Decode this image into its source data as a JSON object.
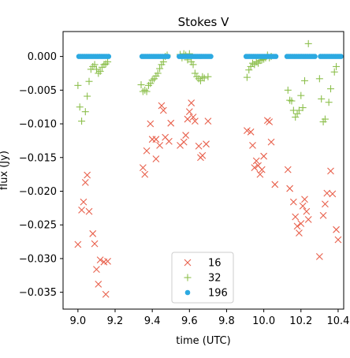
{
  "chart_data": {
    "type": "scatter",
    "title": "Stokes V",
    "xlabel": "time (UTC)",
    "ylabel": "flux (Jy)",
    "xlim": [
      8.92,
      10.43
    ],
    "ylim": [
      -0.0375,
      0.0037
    ],
    "xticks": [
      9.0,
      9.2,
      9.4,
      9.6,
      9.8,
      10.0,
      10.2,
      10.4
    ],
    "xtick_labels": [
      "9.0",
      "9.2",
      "9.4",
      "9.6",
      "9.8",
      "10.0",
      "10.2",
      "10.4"
    ],
    "yticks": [
      0.0,
      -0.005,
      -0.01,
      -0.015,
      -0.02,
      -0.025,
      -0.03,
      -0.035
    ],
    "ytick_labels": [
      "0.000",
      "−0.005",
      "−0.010",
      "−0.015",
      "−0.020",
      "−0.025",
      "−0.030",
      "−0.035"
    ],
    "legend_position": "lower-center",
    "series": [
      {
        "name": "16",
        "marker": "x",
        "color": "#e8604c",
        "points": [
          [
            9.0,
            -0.0279
          ],
          [
            9.02,
            -0.0228
          ],
          [
            9.03,
            -0.0216
          ],
          [
            9.04,
            -0.0187
          ],
          [
            9.05,
            -0.0176
          ],
          [
            9.06,
            -0.023
          ],
          [
            9.08,
            -0.0263
          ],
          [
            9.09,
            -0.0278
          ],
          [
            9.1,
            -0.0316
          ],
          [
            9.11,
            -0.0338
          ],
          [
            9.12,
            -0.0302
          ],
          [
            9.14,
            -0.0305
          ],
          [
            9.15,
            -0.0353
          ],
          [
            9.16,
            -0.0304
          ],
          [
            9.35,
            -0.0165
          ],
          [
            9.36,
            -0.0175
          ],
          [
            9.37,
            -0.014
          ],
          [
            9.39,
            -0.01
          ],
          [
            9.4,
            -0.0123
          ],
          [
            9.42,
            -0.0152
          ],
          [
            9.42,
            -0.0123
          ],
          [
            9.44,
            -0.0132
          ],
          [
            9.45,
            -0.0073
          ],
          [
            9.46,
            -0.008
          ],
          [
            9.47,
            -0.012
          ],
          [
            9.49,
            -0.0126
          ],
          [
            9.5,
            -0.0099
          ],
          [
            9.55,
            -0.0132
          ],
          [
            9.57,
            -0.0127
          ],
          [
            9.58,
            -0.0117
          ],
          [
            9.59,
            -0.0093
          ],
          [
            9.6,
            -0.0082
          ],
          [
            9.61,
            -0.0069
          ],
          [
            9.62,
            -0.009
          ],
          [
            9.63,
            -0.0096
          ],
          [
            9.65,
            -0.0133
          ],
          [
            9.66,
            -0.015
          ],
          [
            9.67,
            -0.0147
          ],
          [
            9.69,
            -0.013
          ],
          [
            9.7,
            -0.0096
          ],
          [
            9.91,
            -0.011
          ],
          [
            9.93,
            -0.0112
          ],
          [
            9.94,
            -0.0132
          ],
          [
            9.95,
            -0.0165
          ],
          [
            9.96,
            -0.0155
          ],
          [
            9.97,
            -0.0162
          ],
          [
            9.98,
            -0.0175
          ],
          [
            9.99,
            -0.0168
          ],
          [
            10.0,
            -0.0148
          ],
          [
            10.02,
            -0.0095
          ],
          [
            10.03,
            -0.0097
          ],
          [
            10.04,
            -0.0127
          ],
          [
            10.06,
            -0.019
          ],
          [
            10.13,
            -0.0168
          ],
          [
            10.14,
            -0.0196
          ],
          [
            10.16,
            -0.0216
          ],
          [
            10.17,
            -0.0238
          ],
          [
            10.18,
            -0.0252
          ],
          [
            10.19,
            -0.0262
          ],
          [
            10.2,
            -0.0248
          ],
          [
            10.21,
            -0.0222
          ],
          [
            10.22,
            -0.0212
          ],
          [
            10.23,
            -0.023
          ],
          [
            10.24,
            -0.0242
          ],
          [
            10.3,
            -0.0297
          ],
          [
            10.32,
            -0.0236
          ],
          [
            10.33,
            -0.0219
          ],
          [
            10.34,
            -0.0203
          ],
          [
            10.36,
            -0.017
          ],
          [
            10.37,
            -0.0204
          ],
          [
            10.39,
            -0.0257
          ],
          [
            10.4,
            -0.0272
          ]
        ]
      },
      {
        "name": "32",
        "marker": "+",
        "color": "#8cbf4c",
        "points": [
          [
            9.0,
            -0.0043
          ],
          [
            9.01,
            -0.0075
          ],
          [
            9.02,
            -0.0096
          ],
          [
            9.04,
            -0.0082
          ],
          [
            9.05,
            -0.0059
          ],
          [
            9.06,
            -0.0037
          ],
          [
            9.07,
            -0.0019
          ],
          [
            9.08,
            -0.0015
          ],
          [
            9.09,
            -0.0012
          ],
          [
            9.1,
            -0.0019
          ],
          [
            9.11,
            -0.0025
          ],
          [
            9.12,
            -0.0022
          ],
          [
            9.13,
            -0.0016
          ],
          [
            9.14,
            -0.0012
          ],
          [
            9.15,
            -0.0011
          ],
          [
            9.16,
            -0.0008
          ],
          [
            9.34,
            -0.0042
          ],
          [
            9.35,
            -0.0052
          ],
          [
            9.36,
            -0.005
          ],
          [
            9.37,
            -0.0052
          ],
          [
            9.38,
            -0.0043
          ],
          [
            9.39,
            -0.004
          ],
          [
            9.4,
            -0.0035
          ],
          [
            9.41,
            -0.0033
          ],
          [
            9.42,
            -0.0029
          ],
          [
            9.43,
            -0.0025
          ],
          [
            9.44,
            -0.0018
          ],
          [
            9.45,
            -0.0012
          ],
          [
            9.46,
            -0.0008
          ],
          [
            9.47,
            0.0
          ],
          [
            9.48,
            0.0002
          ],
          [
            9.55,
            0.0003
          ],
          [
            9.56,
            -0.0002
          ],
          [
            9.57,
            0.0004
          ],
          [
            9.58,
            0.0002
          ],
          [
            9.59,
            -0.0005
          ],
          [
            9.6,
            0.0004
          ],
          [
            9.61,
            -0.0008
          ],
          [
            9.62,
            -0.0012
          ],
          [
            9.63,
            -0.0025
          ],
          [
            9.64,
            -0.003
          ],
          [
            9.65,
            -0.0033
          ],
          [
            9.66,
            -0.0036
          ],
          [
            9.67,
            -0.003
          ],
          [
            9.68,
            -0.0032
          ],
          [
            9.7,
            -0.003
          ],
          [
            9.91,
            -0.0031
          ],
          [
            9.92,
            -0.002
          ],
          [
            9.93,
            -0.0015
          ],
          [
            9.94,
            -0.001
          ],
          [
            9.95,
            -0.0012
          ],
          [
            9.96,
            -0.0008
          ],
          [
            9.97,
            -0.001
          ],
          [
            9.98,
            -0.0006
          ],
          [
            9.99,
            -0.0005
          ],
          [
            10.0,
            -0.0004
          ],
          [
            10.01,
            -0.0002
          ],
          [
            10.02,
            0.0002
          ],
          [
            10.03,
            -0.0002
          ],
          [
            10.04,
            0.0
          ],
          [
            10.13,
            -0.005
          ],
          [
            10.14,
            -0.0065
          ],
          [
            10.15,
            -0.0066
          ],
          [
            10.16,
            -0.008
          ],
          [
            10.17,
            -0.009
          ],
          [
            10.18,
            -0.0085
          ],
          [
            10.19,
            -0.008
          ],
          [
            10.2,
            -0.0058
          ],
          [
            10.21,
            -0.0076
          ],
          [
            10.22,
            -0.0036
          ],
          [
            10.24,
            0.0019
          ],
          [
            10.3,
            -0.0033
          ],
          [
            10.31,
            -0.0063
          ],
          [
            10.32,
            -0.0097
          ],
          [
            10.33,
            -0.0093
          ],
          [
            10.35,
            -0.0068
          ],
          [
            10.36,
            -0.0048
          ],
          [
            10.38,
            -0.0023
          ],
          [
            10.39,
            -0.0015
          ]
        ]
      },
      {
        "name": "196",
        "marker": "o",
        "color": "#2ca9e1",
        "segments": [
          [
            9.005,
            9.165
          ],
          [
            9.345,
            9.485
          ],
          [
            9.545,
            9.715
          ],
          [
            9.905,
            10.065
          ],
          [
            10.125,
            10.275
          ],
          [
            10.305,
            10.415
          ]
        ],
        "step": 0.01,
        "value": 0.0
      }
    ]
  }
}
